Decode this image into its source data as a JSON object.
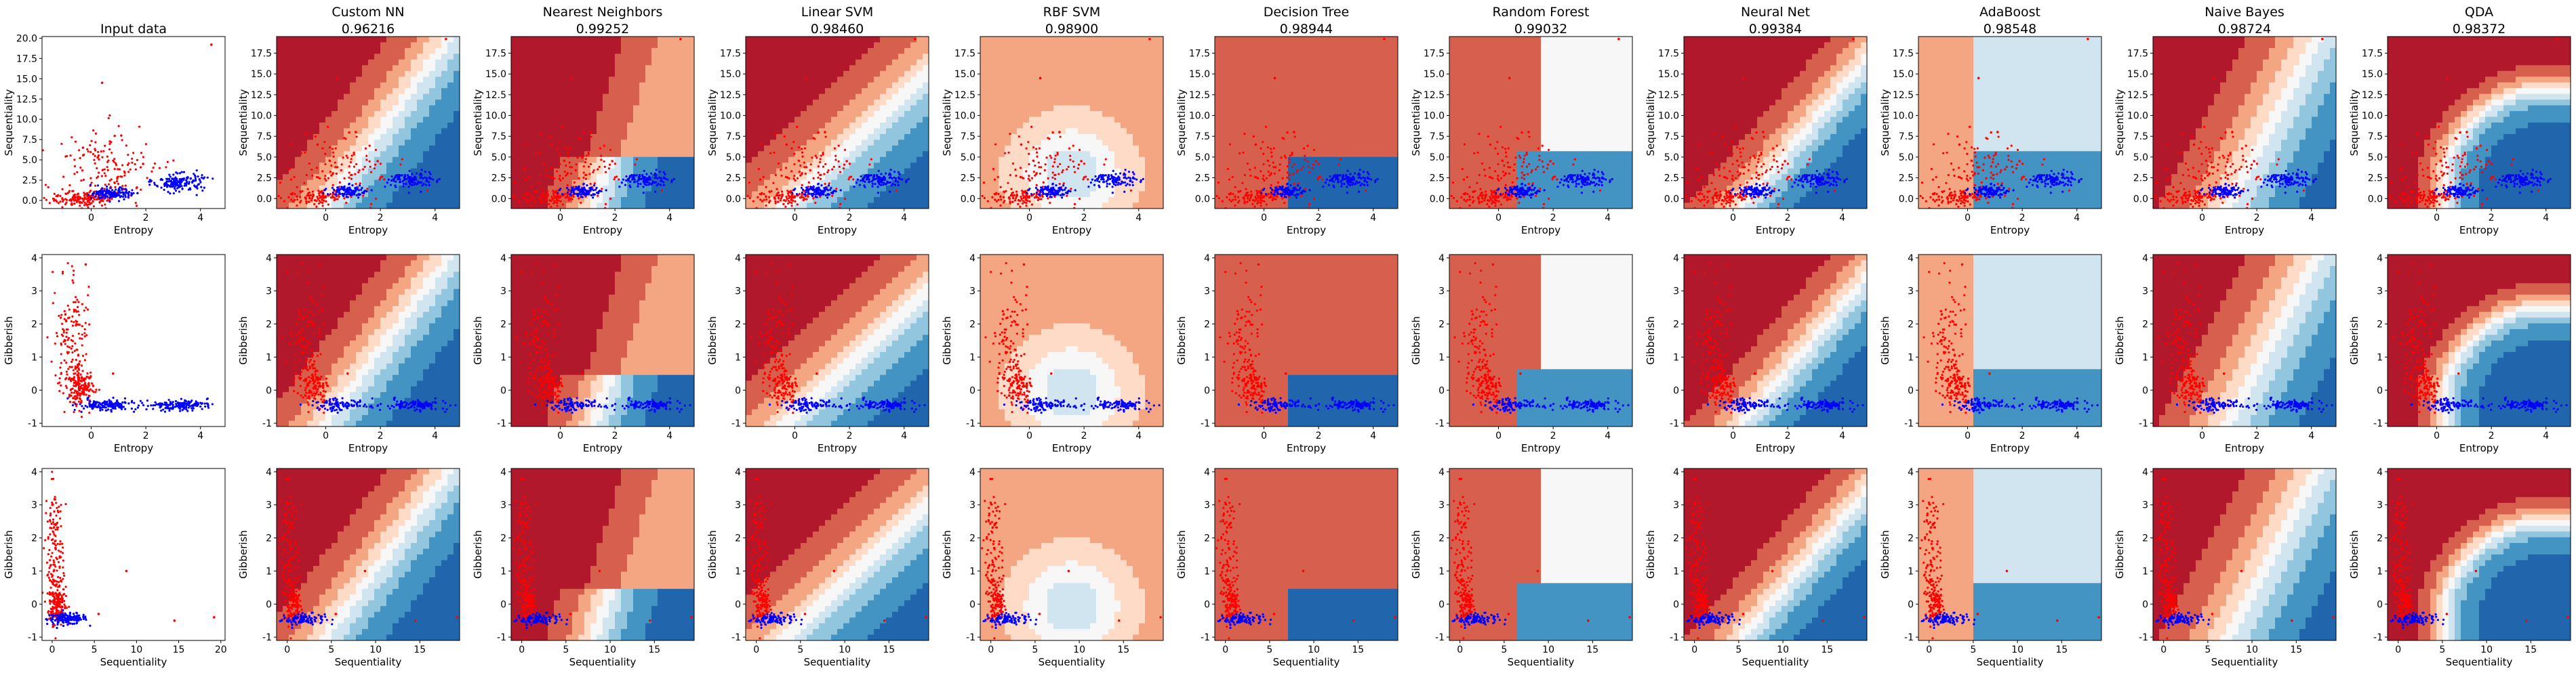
{
  "figure": {
    "columns": [
      {
        "title": "Input data",
        "score": ""
      },
      {
        "title": "Custom NN",
        "score": "0.96216"
      },
      {
        "title": "Nearest Neighbors",
        "score": "0.99252"
      },
      {
        "title": "Linear SVM",
        "score": "0.98460"
      },
      {
        "title": "RBF SVM",
        "score": "0.98900"
      },
      {
        "title": "Decision Tree",
        "score": "0.98944"
      },
      {
        "title": "Random Forest",
        "score": "0.99032"
      },
      {
        "title": "Neural Net",
        "score": "0.99384"
      },
      {
        "title": "AdaBoost",
        "score": "0.98548"
      },
      {
        "title": "Naive Bayes",
        "score": "0.98724"
      },
      {
        "title": "QDA",
        "score": "0.98372"
      }
    ],
    "colors": {
      "class_a": "#ff0000",
      "class_b": "#0000ff",
      "colormap": [
        "#b2182b",
        "#d6604d",
        "#f4a582",
        "#fddbc7",
        "#f7f7f7",
        "#d1e5f0",
        "#92c5de",
        "#4393c3",
        "#2166ac"
      ]
    }
  },
  "chart_data": [
    {
      "type": "scatter",
      "row": 0,
      "xlabel": "Entropy",
      "ylabel": "Sequentiality",
      "input_xticks": [
        0,
        2,
        4
      ],
      "input_yticks": [
        0.0,
        2.5,
        5.0,
        7.5,
        10.0,
        12.5,
        15.0,
        17.5,
        20.0
      ],
      "xticks": [
        0,
        2,
        4
      ],
      "yticks": [
        0.0,
        2.5,
        5.0,
        7.5,
        10.0,
        12.5,
        15.0,
        17.5
      ],
      "input_xlim": [
        -1.8,
        4.9
      ],
      "input_ylim": [
        -1.0,
        20.2
      ],
      "xlim": [
        -1.8,
        4.9
      ],
      "ylim": [
        -1.2,
        19.5
      ],
      "series": [
        {
          "name": "red class",
          "clusters": [
            {
              "cx": -0.3,
              "cy": 0.2,
              "sx": 0.6,
              "sy": 0.5
            },
            {
              "cx": 0.5,
              "cy": 3.5,
              "sx": 1.0,
              "sy": 2.5
            }
          ],
          "outliers": [
            [
              0.4,
              14.5
            ],
            [
              4.4,
              19.2
            ],
            [
              1.1,
              8.0
            ],
            [
              -0.3,
              6.5
            ],
            [
              1.9,
              4.5
            ]
          ]
        },
        {
          "name": "blue class",
          "clusters": [
            {
              "cx": 0.8,
              "cy": 0.8,
              "sx": 0.35,
              "sy": 0.35
            },
            {
              "cx": 3.2,
              "cy": 2.2,
              "sx": 0.45,
              "sy": 0.55
            }
          ],
          "outliers": []
        }
      ]
    },
    {
      "type": "scatter",
      "row": 1,
      "xlabel": "Entropy",
      "ylabel": "Gibberish",
      "input_xticks": [
        0,
        2,
        4
      ],
      "input_yticks": [
        -1,
        0,
        1,
        2,
        3,
        4
      ],
      "xticks": [
        0,
        2,
        4
      ],
      "yticks": [
        -1,
        0,
        1,
        2,
        3,
        4
      ],
      "input_xlim": [
        -1.8,
        4.9
      ],
      "input_ylim": [
        -1.1,
        4.1
      ],
      "xlim": [
        -1.8,
        4.9
      ],
      "ylim": [
        -1.1,
        4.1
      ],
      "series": [
        {
          "name": "red class",
          "clusters": [
            {
              "cx": -0.7,
              "cy": 1.5,
              "sx": 0.3,
              "sy": 1.0
            },
            {
              "cx": -0.4,
              "cy": 0.1,
              "sx": 0.25,
              "sy": 0.25
            }
          ],
          "outliers": [
            [
              0.8,
              0.5
            ],
            [
              -0.2,
              3.8
            ]
          ]
        },
        {
          "name": "blue class",
          "clusters": [
            {
              "cx": 0.5,
              "cy": -0.45,
              "sx": 0.5,
              "sy": 0.08
            },
            {
              "cx": 3.2,
              "cy": -0.45,
              "sx": 0.55,
              "sy": 0.08
            }
          ],
          "outliers": []
        }
      ]
    },
    {
      "type": "scatter",
      "row": 2,
      "xlabel": "Sequentiality",
      "ylabel": "Gibberish",
      "input_xticks": [
        0,
        5,
        10,
        15,
        20
      ],
      "input_yticks": [
        -1,
        0,
        1,
        2,
        3,
        4
      ],
      "xticks": [
        0,
        5,
        10,
        15
      ],
      "yticks": [
        -1,
        0,
        1,
        2,
        3,
        4
      ],
      "input_xlim": [
        -1.2,
        20.5
      ],
      "input_ylim": [
        -1.1,
        4.1
      ],
      "xlim": [
        -1.2,
        19.5
      ],
      "ylim": [
        -1.1,
        4.1
      ],
      "series": [
        {
          "name": "red class",
          "clusters": [
            {
              "cx": 0.3,
              "cy": 1.5,
              "sx": 0.5,
              "sy": 1.0
            },
            {
              "cx": 0.6,
              "cy": 0.0,
              "sx": 0.5,
              "sy": 0.3
            }
          ],
          "outliers": [
            [
              8.8,
              1.0
            ],
            [
              14.5,
              -0.5
            ],
            [
              19.2,
              -0.4
            ],
            [
              5.5,
              -0.3
            ]
          ]
        },
        {
          "name": "blue class",
          "clusters": [
            {
              "cx": 1.8,
              "cy": -0.45,
              "sx": 1.2,
              "sy": 0.08
            }
          ],
          "outliers": []
        }
      ]
    }
  ]
}
